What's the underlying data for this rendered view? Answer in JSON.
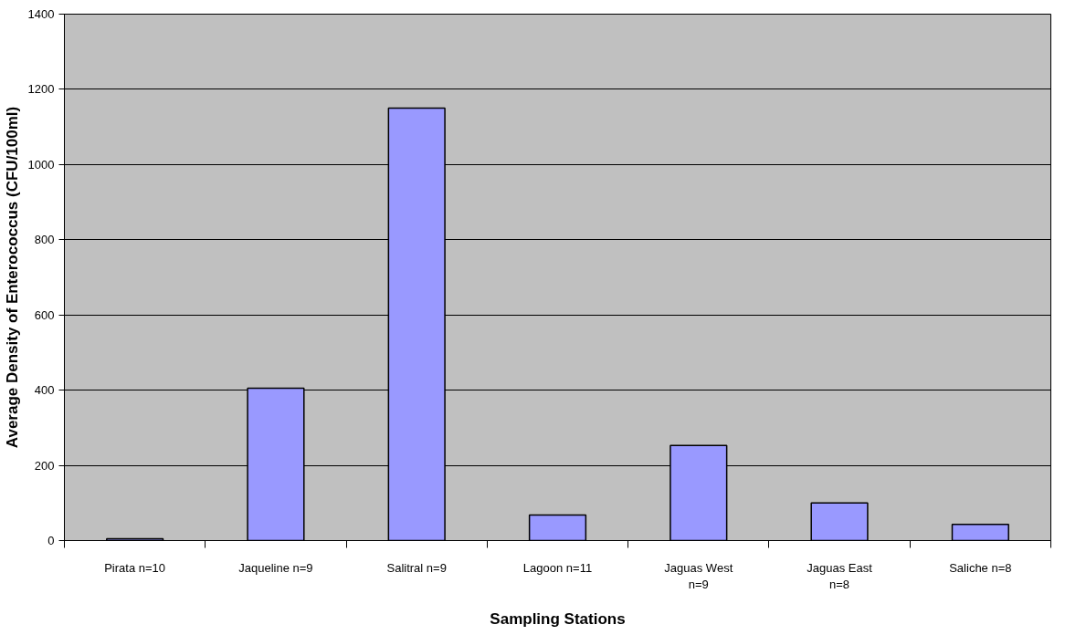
{
  "chart_data": {
    "type": "bar",
    "xlabel": "Sampling Stations",
    "ylabel": "Average Density of Enterococcus (CFU/100ml)",
    "categories": [
      "Pirata n=10",
      "Jaqueline n=9",
      "Salitral n=9",
      "Lagoon n=11",
      "Jaguas West n=9",
      "Jaguas East n=8",
      "Saliche n=8"
    ],
    "values": [
      5,
      405,
      1150,
      68,
      253,
      100,
      43
    ],
    "color": "#9999ff",
    "ylim": [
      0,
      1400
    ],
    "yticks": [
      0,
      200,
      400,
      600,
      800,
      1000,
      1200,
      1400
    ],
    "grid": "y"
  }
}
